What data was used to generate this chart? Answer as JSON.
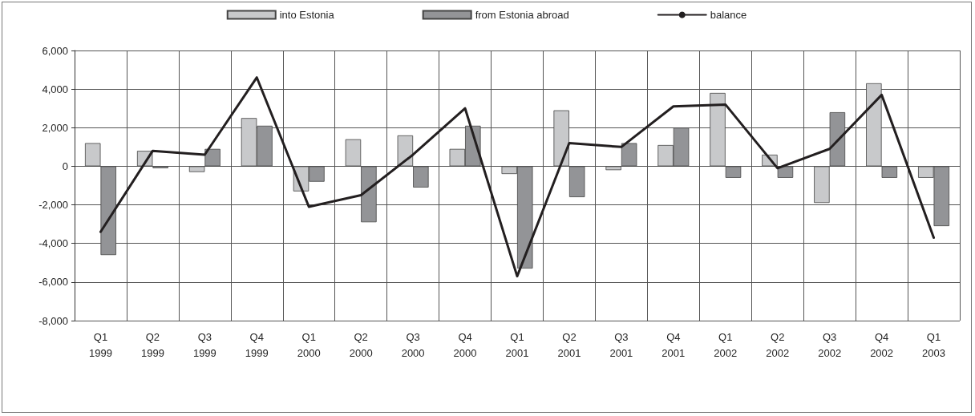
{
  "chart_data": {
    "type": "bar",
    "categories": [
      "Q1\n1999",
      "Q2\n1999",
      "Q3\n1999",
      "Q4\n1999",
      "Q1\n2000",
      "Q2\n2000",
      "Q3\n2000",
      "Q4\n2000",
      "Q1\n2001",
      "Q2\n2001",
      "Q3\n2001",
      "Q4\n2001",
      "Q1\n2002",
      "Q2\n2002",
      "Q3\n2002",
      "Q4\n2002",
      "Q1\n2003"
    ],
    "series": [
      {
        "name": "into Estonia",
        "color": "#c8c9cb",
        "values": [
          1200,
          800,
          -300,
          2500,
          -1300,
          1400,
          1600,
          900,
          -400,
          2900,
          -200,
          1100,
          3800,
          600,
          -1900,
          4300,
          -600
        ]
      },
      {
        "name": "from Estonia abroad",
        "color": "#939497",
        "values": [
          -4600,
          -100,
          900,
          2100,
          -800,
          -2900,
          -1100,
          2100,
          -5300,
          -1600,
          1200,
          2000,
          -600,
          -600,
          2800,
          -600,
          -3100
        ]
      },
      {
        "name": "balance",
        "type": "line",
        "color": "#231f20",
        "values": [
          -3400,
          800,
          600,
          4600,
          -2100,
          -1500,
          600,
          3000,
          -5700,
          1200,
          1000,
          3100,
          3200,
          -100,
          900,
          3700,
          -3700
        ]
      }
    ],
    "ylim": [
      -8000,
      6000
    ],
    "yticks": [
      {
        "value": -8000,
        "label": "-8,000"
      },
      {
        "value": -6000,
        "label": "-6,000"
      },
      {
        "value": -4000,
        "label": "-4,000"
      },
      {
        "value": -2000,
        "label": "-2,000"
      },
      0,
      {
        "value": 2000,
        "label": "2,000"
      },
      {
        "value": 4000,
        "label": "4,000"
      },
      {
        "value": 6000,
        "label": "6,000"
      }
    ],
    "grid": true,
    "legend": "top",
    "marker": "none",
    "line_style": "solid"
  }
}
